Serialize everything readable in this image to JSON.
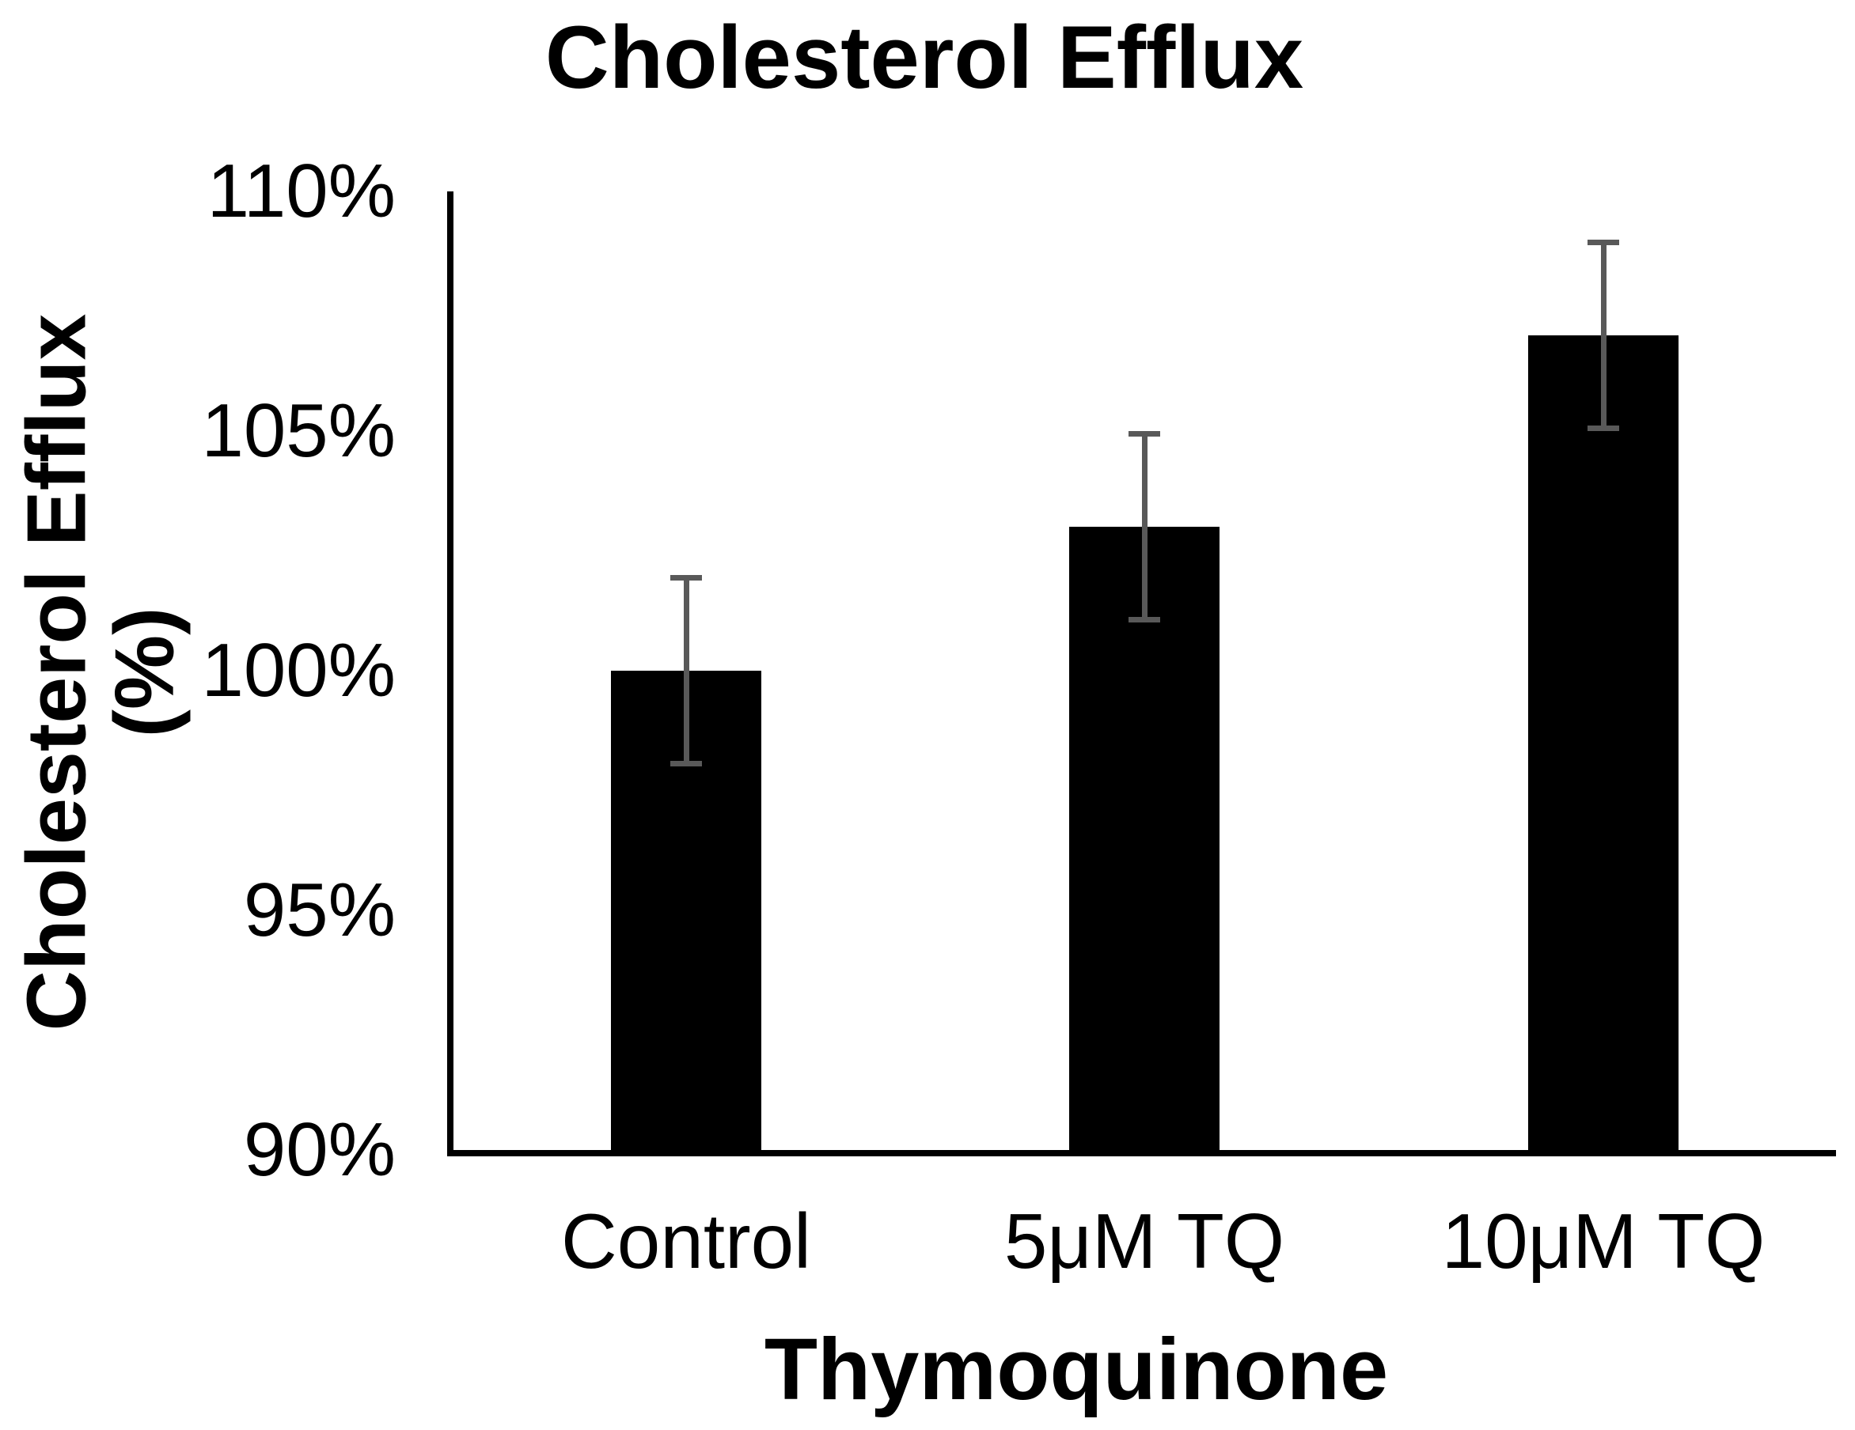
{
  "chart": {
    "title": "Cholesterol Efflux",
    "y_axis": {
      "title_line1": "Cholesterol Efflux",
      "title_line2": "(%)",
      "tick_labels": [
        "110%",
        "105%",
        "100%",
        "95%",
        "90%"
      ]
    },
    "x_axis": {
      "title": "Thymoquinone",
      "tick_labels": [
        "Control",
        "5μM TQ",
        "10μM TQ"
      ]
    }
  },
  "chart_data": {
    "type": "bar",
    "title": "Cholesterol Efflux",
    "xlabel": "Thymoquinone",
    "ylabel": "Cholesterol Efflux (%)",
    "categories": [
      "Control",
      "5μM TQ",
      "10μM TQ"
    ],
    "values": [
      100,
      103,
      107
    ],
    "error_bars": {
      "plus": [
        2,
        2,
        2
      ],
      "minus": [
        2,
        2,
        2
      ]
    },
    "ylim": [
      90,
      110
    ],
    "ytick_step": 5,
    "ytick_format": "percent",
    "bar_color": "#000000",
    "error_bar_color": "#595959",
    "axis_color": "#000000",
    "grid": false,
    "legend": false
  }
}
